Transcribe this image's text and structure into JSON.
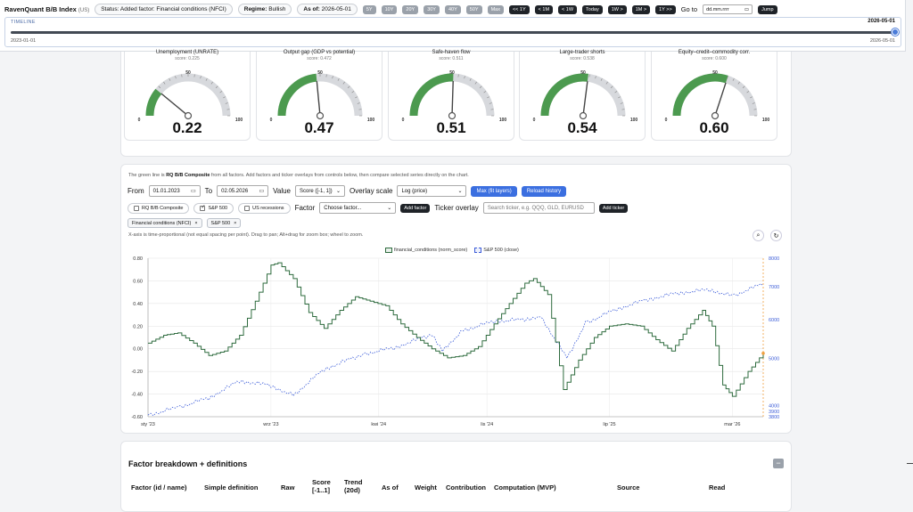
{
  "header": {
    "app_title": "RavenQuant B/B Index",
    "app_region": "(US)",
    "status": "Status: Added factor: Financial conditions (NFCI)",
    "regime_label": "Regime:",
    "regime_value": "Bullish",
    "asof_label": "As of:",
    "asof_value": "2026-05-01",
    "ranges": [
      "5Y",
      "10Y",
      "20Y",
      "30Y",
      "40Y",
      "50Y",
      "Max"
    ],
    "steps": [
      "<< 1Y",
      "< 1M",
      "< 1W",
      "Today",
      "1W >",
      "1M >",
      "1Y >>"
    ],
    "goto_label": "Go to",
    "goto_placeholder": "dd.mm.rrrr",
    "jump_label": "Jump"
  },
  "timeline": {
    "label": "TIMELINE",
    "current": "2026-05-01",
    "start": "2023-01-01",
    "end": "2026-05-01",
    "position_fraction": 1.0
  },
  "gauges": [
    {
      "title": "Unemployment (UNRATE)",
      "score": "score: 0.225",
      "value": "0.22",
      "level": 0.22
    },
    {
      "title": "Output gap (GDP vs potential)",
      "score": "score: 0.472",
      "value": "0.47",
      "level": 0.47
    },
    {
      "title": "Safe-haven flow",
      "score": "score: 0.511",
      "value": "0.51",
      "level": 0.51
    },
    {
      "title": "Large-trader shorts",
      "score": "score: 0.538",
      "value": "0.54",
      "level": 0.54
    },
    {
      "title": "Equity–credit–commodity corr.",
      "score": "score: 0.600",
      "value": "0.60",
      "level": 0.6
    }
  ],
  "gauge_ticks": {
    "min": "0",
    "mid": "50",
    "max": "100"
  },
  "chart_panel": {
    "note_pre": "The green line is ",
    "note_bold": "RQ B/B Composite",
    "note_post": " from all factors. Add factors and ticker overlays from controls below, then compare selected series directly on the chart.",
    "from_label": "From",
    "from_value": "01.01.2023",
    "to_label": "To",
    "to_value": "02.05.2026",
    "value_label": "Value",
    "value_select": "Score ([-1, 1])",
    "overlay_label": "Overlay scale",
    "overlay_select": "Log (price)",
    "max_btn": "Max (fit layers)",
    "reload_btn": "Reload history",
    "cb_composite": "RQ B/B Composite",
    "cb_sp500": "S&P 500",
    "cb_recessions": "US recessions",
    "factor_label": "Factor",
    "factor_select": "Choose factor...",
    "add_factor": "Add factor",
    "ticker_label": "Ticker overlay",
    "ticker_placeholder": "Search ticker, e.g. QQQ, GLD, EURUSD",
    "add_ticker": "Add ticker",
    "chips": [
      "Financial conditions (NFCI)",
      "S&P 500"
    ],
    "chip_close": "×",
    "hint": "X-axis is time-proportional (not equal spacing per point). Drag to pan; Alt+drag for zoom box; wheel to zoom.",
    "zoom_icon": "search-icon",
    "reset_icon": "reset-icon"
  },
  "chart_data": {
    "type": "line",
    "xlabel": "",
    "ylabel": "",
    "x_ticks": [
      "sty '23",
      "wrz '23",
      "kwi '24",
      "lis '24",
      "lip '25",
      "mar '26"
    ],
    "y_left_ticks": [
      "0.80",
      "0.60",
      "0.40",
      "0.20",
      "0.00",
      "-0.20",
      "-0.40",
      "-0.60"
    ],
    "y_left_range": [
      -0.6,
      0.8
    ],
    "y_right_ticks": [
      "8000",
      "7000",
      "6000",
      "5000",
      "4000",
      "3900",
      "3800"
    ],
    "y_right_scale": "log",
    "legend_position": "top-center",
    "grid": true,
    "series": [
      {
        "name": "financial_conditions (norm_score)",
        "axis": "left",
        "color": "#2e6b3e",
        "style": "step",
        "points": [
          [
            "2023-01-01",
            0.05
          ],
          [
            "2023-02-01",
            0.12
          ],
          [
            "2023-03-01",
            0.14
          ],
          [
            "2023-04-01",
            0.05
          ],
          [
            "2023-05-01",
            -0.06
          ],
          [
            "2023-06-01",
            -0.02
          ],
          [
            "2023-07-01",
            0.12
          ],
          [
            "2023-08-01",
            0.42
          ],
          [
            "2023-09-01",
            0.74
          ],
          [
            "2023-09-15",
            0.76
          ],
          [
            "2023-10-15",
            0.62
          ],
          [
            "2023-11-15",
            0.32
          ],
          [
            "2023-12-15",
            0.18
          ],
          [
            "2024-01-15",
            0.34
          ],
          [
            "2024-02-15",
            0.46
          ],
          [
            "2024-03-15",
            0.42
          ],
          [
            "2024-04-15",
            0.38
          ],
          [
            "2024-05-15",
            0.22
          ],
          [
            "2024-06-15",
            0.1
          ],
          [
            "2024-07-15",
            0.0
          ],
          [
            "2024-08-15",
            -0.08
          ],
          [
            "2024-09-15",
            -0.06
          ],
          [
            "2024-10-15",
            0.02
          ],
          [
            "2024-11-15",
            0.22
          ],
          [
            "2024-12-15",
            0.4
          ],
          [
            "2025-01-15",
            0.58
          ],
          [
            "2025-02-01",
            0.62
          ],
          [
            "2025-03-01",
            0.48
          ],
          [
            "2025-04-01",
            -0.36
          ],
          [
            "2025-05-01",
            -0.1
          ],
          [
            "2025-06-01",
            0.1
          ],
          [
            "2025-07-01",
            0.2
          ],
          [
            "2025-08-01",
            0.22
          ],
          [
            "2025-09-01",
            0.2
          ],
          [
            "2025-10-01",
            0.08
          ],
          [
            "2025-11-01",
            -0.02
          ],
          [
            "2025-12-01",
            0.18
          ],
          [
            "2026-01-01",
            0.34
          ],
          [
            "2026-01-20",
            0.2
          ],
          [
            "2026-02-10",
            -0.32
          ],
          [
            "2026-03-01",
            -0.42
          ],
          [
            "2026-04-01",
            -0.2
          ],
          [
            "2026-05-01",
            -0.04
          ]
        ]
      },
      {
        "name": "S&P 500 (close)",
        "axis": "right",
        "color": "#3a5bd8",
        "style": "dashed",
        "points": [
          [
            "2023-01-01",
            3830
          ],
          [
            "2023-03-01",
            3970
          ],
          [
            "2023-05-01",
            4150
          ],
          [
            "2023-07-01",
            4500
          ],
          [
            "2023-09-01",
            4400
          ],
          [
            "2023-10-15",
            4200
          ],
          [
            "2023-12-15",
            4750
          ],
          [
            "2024-03-01",
            5100
          ],
          [
            "2024-05-01",
            5250
          ],
          [
            "2024-07-15",
            5600
          ],
          [
            "2024-08-05",
            5200
          ],
          [
            "2024-09-15",
            5700
          ],
          [
            "2024-11-15",
            5950
          ],
          [
            "2025-01-15",
            6000
          ],
          [
            "2025-02-15",
            6100
          ],
          [
            "2025-04-08",
            5000
          ],
          [
            "2025-05-15",
            5900
          ],
          [
            "2025-07-15",
            6300
          ],
          [
            "2025-09-15",
            6600
          ],
          [
            "2025-11-15",
            6800
          ],
          [
            "2026-01-15",
            6900
          ],
          [
            "2026-03-01",
            6700
          ],
          [
            "2026-05-01",
            7100
          ]
        ]
      }
    ]
  },
  "factors_table": {
    "title": "Factor breakdown + definitions",
    "collapse": "−",
    "columns": [
      "Factor (id / name)",
      "Simple definition",
      "Raw",
      "Score [-1..1]",
      "Trend (20d)",
      "As of",
      "Weight",
      "Contribution",
      "Computation (MVP)",
      "Source",
      "Read"
    ]
  }
}
